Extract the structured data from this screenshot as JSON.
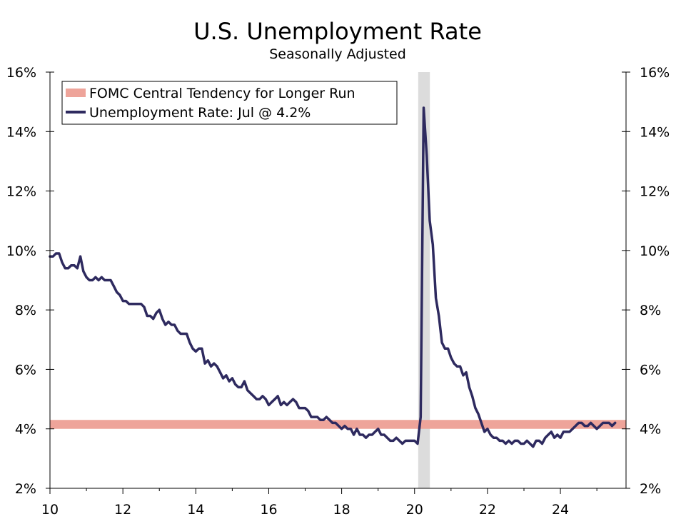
{
  "chart_data": {
    "type": "line",
    "title": "U.S. Unemployment Rate",
    "subtitle": "Seasonally Adjusted",
    "xlabel": "",
    "ylabel": "",
    "xlim": [
      2010.0,
      2025.8
    ],
    "ylim": [
      2,
      16
    ],
    "x_ticks": [
      10,
      12,
      14,
      16,
      18,
      20,
      22,
      24
    ],
    "y_ticks": [
      2,
      4,
      6,
      8,
      10,
      12,
      14,
      16
    ],
    "y_tick_suffix": "%",
    "recession_band": {
      "start": 2020.1,
      "end": 2020.42
    },
    "band_series": {
      "name": "FOMC Central Tendency for Longer Run",
      "low": 4.0,
      "high": 4.3,
      "color": "#eea49a"
    },
    "series": [
      {
        "name": "Unemployment Rate: Jul @ 4.2%",
        "color": "#2e2a5f",
        "start": 2010.0,
        "step_months": 1,
        "values": [
          9.8,
          9.8,
          9.9,
          9.9,
          9.6,
          9.4,
          9.4,
          9.5,
          9.5,
          9.4,
          9.8,
          9.3,
          9.1,
          9.0,
          9.0,
          9.1,
          9.0,
          9.1,
          9.0,
          9.0,
          9.0,
          8.8,
          8.6,
          8.5,
          8.3,
          8.3,
          8.2,
          8.2,
          8.2,
          8.2,
          8.2,
          8.1,
          7.8,
          7.8,
          7.7,
          7.9,
          8.0,
          7.7,
          7.5,
          7.6,
          7.5,
          7.5,
          7.3,
          7.2,
          7.2,
          7.2,
          6.9,
          6.7,
          6.6,
          6.7,
          6.7,
          6.2,
          6.3,
          6.1,
          6.2,
          6.1,
          5.9,
          5.7,
          5.8,
          5.6,
          5.7,
          5.5,
          5.4,
          5.4,
          5.6,
          5.3,
          5.2,
          5.1,
          5.0,
          5.0,
          5.1,
          5.0,
          4.8,
          4.9,
          5.0,
          5.1,
          4.8,
          4.9,
          4.8,
          4.9,
          5.0,
          4.9,
          4.7,
          4.7,
          4.7,
          4.6,
          4.4,
          4.4,
          4.4,
          4.3,
          4.3,
          4.4,
          4.3,
          4.2,
          4.2,
          4.1,
          4.0,
          4.1,
          4.0,
          4.0,
          3.8,
          4.0,
          3.8,
          3.8,
          3.7,
          3.8,
          3.8,
          3.9,
          4.0,
          3.8,
          3.8,
          3.7,
          3.6,
          3.6,
          3.7,
          3.6,
          3.5,
          3.6,
          3.6,
          3.6,
          3.6,
          3.5,
          4.4,
          14.8,
          13.2,
          11.0,
          10.2,
          8.4,
          7.8,
          6.9,
          6.7,
          6.7,
          6.4,
          6.2,
          6.1,
          6.1,
          5.8,
          5.9,
          5.4,
          5.1,
          4.7,
          4.5,
          4.2,
          3.9,
          4.0,
          3.8,
          3.7,
          3.7,
          3.6,
          3.6,
          3.5,
          3.6,
          3.5,
          3.6,
          3.6,
          3.5,
          3.5,
          3.6,
          3.5,
          3.4,
          3.6,
          3.6,
          3.5,
          3.7,
          3.8,
          3.9,
          3.7,
          3.8,
          3.7,
          3.9,
          3.9,
          3.9,
          4.0,
          4.1,
          4.2,
          4.2,
          4.1,
          4.1,
          4.2,
          4.1,
          4.0,
          4.1,
          4.2,
          4.2,
          4.2,
          4.1,
          4.2
        ]
      }
    ],
    "legend_position": "top-left",
    "legend": [
      {
        "label": "FOMC Central Tendency for Longer Run",
        "kind": "band"
      },
      {
        "label": "Unemployment Rate: Jul @ 4.2%",
        "kind": "line"
      }
    ]
  }
}
